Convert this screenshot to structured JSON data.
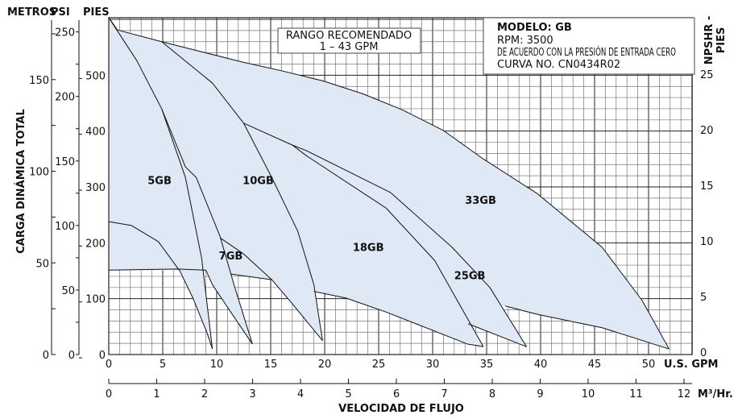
{
  "chart_data": {
    "type": "line",
    "title": "",
    "colors": {
      "fill": "#dfe8f5",
      "curve": "#111111",
      "grid_major": "#222222",
      "grid_minor": "#777777"
    },
    "grid": true,
    "x_axis": {
      "label": "U.S. GPM",
      "range": [
        0,
        54
      ],
      "ticks": [
        0,
        5,
        10,
        15,
        20,
        25,
        30,
        35,
        40,
        45,
        50
      ]
    },
    "x2_axis": {
      "label": "M³/Hr.",
      "title": "VELOCIDAD DE FLUJO",
      "range": [
        0,
        12.3
      ],
      "ticks": [
        0,
        1,
        2,
        3,
        4,
        5,
        6,
        7,
        8,
        9,
        10,
        11,
        12
      ]
    },
    "y_axis_title": "CARGA DINÁMICA TOTAL",
    "y_axes": [
      {
        "label": "METROS",
        "ticks": [
          0,
          50,
          100,
          150
        ],
        "minor_ticks": [
          25,
          75,
          125,
          175
        ]
      },
      {
        "label": "PSI",
        "ticks": [
          0,
          50,
          100,
          150,
          200,
          250
        ],
        "minor_ticks": [
          25,
          75,
          125,
          175,
          225
        ]
      },
      {
        "label": "PIES",
        "ticks": [
          0,
          100,
          200,
          300,
          400,
          500
        ],
        "range": [
          0,
          603
        ]
      }
    ],
    "y_right_axis": {
      "label_line1": "NPSHR -",
      "label_line2": "PIES",
      "ticks": [
        0,
        5,
        10,
        15,
        20,
        25
      ],
      "range": [
        0,
        25
      ]
    },
    "series_labels": [
      {
        "text": "5GB",
        "x": 3.6,
        "y": 305
      },
      {
        "text": "7GB",
        "x": 10.2,
        "y": 170
      },
      {
        "text": "10GB",
        "x": 12.4,
        "y": 305
      },
      {
        "text": "18GB",
        "x": 22.6,
        "y": 185
      },
      {
        "text": "25GB",
        "x": 32.0,
        "y": 135
      },
      {
        "text": "33GB",
        "x": 33.0,
        "y": 270
      }
    ],
    "regions": [
      {
        "name": "33GB",
        "points": [
          [
            0,
            603
          ],
          [
            0.8,
            581
          ],
          [
            4.9,
            560
          ],
          [
            8.6,
            542
          ],
          [
            12.3,
            524
          ],
          [
            16.0,
            508
          ],
          [
            19.8,
            490
          ],
          [
            23.5,
            467
          ],
          [
            27.2,
            438
          ],
          [
            31.0,
            401
          ],
          [
            34.7,
            350
          ],
          [
            39.7,
            288
          ],
          [
            45.7,
            192
          ],
          [
            49.4,
            97
          ],
          [
            51.9,
            10
          ],
          [
            45.7,
            48
          ],
          [
            39.7,
            72
          ],
          [
            36.7,
            87
          ],
          [
            22.0,
            101
          ],
          [
            15.1,
            134
          ],
          [
            9.0,
            151
          ],
          [
            0,
            151
          ]
        ]
      },
      {
        "name": "25GB",
        "points": [
          [
            17.0,
            375
          ],
          [
            18.3,
            365
          ],
          [
            26.1,
            290
          ],
          [
            31.8,
            192
          ],
          [
            35.3,
            120
          ],
          [
            38.7,
            14
          ],
          [
            33.4,
            54
          ],
          [
            29.0,
            65
          ],
          [
            22.0,
            101
          ],
          [
            17.0,
            200
          ]
        ]
      },
      {
        "name": "18GB",
        "points": [
          [
            12.5,
            414
          ],
          [
            17.0,
            375
          ],
          [
            18.3,
            356
          ],
          [
            25.7,
            262
          ],
          [
            30.2,
            168
          ],
          [
            34.7,
            14
          ],
          [
            33.2,
            19
          ],
          [
            25.7,
            76
          ],
          [
            22.0,
            101
          ],
          [
            19.8,
            111
          ],
          [
            15.1,
            134
          ],
          [
            11.3,
            144
          ]
        ]
      },
      {
        "name": "10GB",
        "points": [
          [
            0.8,
            581
          ],
          [
            4.9,
            560
          ],
          [
            9.6,
            486
          ],
          [
            12.5,
            414
          ],
          [
            15.1,
            317
          ],
          [
            17.5,
            221
          ],
          [
            19.0,
            125
          ],
          [
            19.8,
            25
          ],
          [
            17.0,
            91
          ],
          [
            15.1,
            134
          ],
          [
            11.3,
            144
          ],
          [
            9.0,
            151
          ],
          [
            0,
            151
          ]
        ]
      },
      {
        "name": "7GB",
        "points": [
          [
            0,
            603
          ],
          [
            4.9,
            440
          ],
          [
            7.1,
            336
          ],
          [
            8.1,
            317
          ],
          [
            10.3,
            212
          ],
          [
            11.6,
            125
          ],
          [
            13.3,
            19
          ],
          [
            11.3,
            76
          ],
          [
            9.6,
            125
          ],
          [
            9.0,
            151
          ],
          [
            0,
            151
          ]
        ]
      },
      {
        "name": "5GB",
        "points": [
          [
            0,
            603
          ],
          [
            2.6,
            526
          ],
          [
            4.9,
            440
          ],
          [
            7.1,
            317
          ],
          [
            8.6,
            173
          ],
          [
            9.6,
            10
          ],
          [
            9.1,
            39
          ],
          [
            7.8,
            101
          ],
          [
            6.6,
            149
          ],
          [
            4.6,
            202
          ],
          [
            2.1,
            231
          ],
          [
            0,
            238
          ]
        ]
      }
    ],
    "curves": [
      {
        "name": "33GB-head",
        "points": [
          [
            0,
            603
          ],
          [
            0.8,
            581
          ],
          [
            4.9,
            560
          ],
          [
            8.6,
            542
          ],
          [
            12.3,
            524
          ],
          [
            16.0,
            508
          ],
          [
            19.8,
            490
          ],
          [
            23.5,
            467
          ],
          [
            27.2,
            438
          ],
          [
            31.0,
            401
          ],
          [
            34.7,
            350
          ],
          [
            39.7,
            288
          ],
          [
            45.7,
            192
          ],
          [
            49.4,
            97
          ],
          [
            51.9,
            10
          ]
        ]
      },
      {
        "name": "5GB-head",
        "points": [
          [
            0,
            603
          ],
          [
            2.6,
            526
          ],
          [
            4.9,
            440
          ],
          [
            7.1,
            317
          ],
          [
            8.6,
            173
          ],
          [
            9.6,
            10
          ]
        ]
      },
      {
        "name": "7GB-head",
        "points": [
          [
            4.9,
            440
          ],
          [
            7.1,
            336
          ],
          [
            8.1,
            317
          ],
          [
            10.3,
            212
          ],
          [
            11.6,
            125
          ],
          [
            13.3,
            19
          ]
        ]
      },
      {
        "name": "10GB-head",
        "points": [
          [
            4.9,
            560
          ],
          [
            9.6,
            486
          ],
          [
            12.5,
            414
          ],
          [
            15.1,
            317
          ],
          [
            17.5,
            221
          ],
          [
            19.0,
            125
          ],
          [
            19.8,
            25
          ]
        ]
      },
      {
        "name": "18GB-head",
        "points": [
          [
            12.5,
            414
          ],
          [
            17.0,
            375
          ],
          [
            18.3,
            356
          ],
          [
            25.7,
            262
          ],
          [
            30.2,
            168
          ],
          [
            34.7,
            14
          ]
        ]
      },
      {
        "name": "25GB-head",
        "points": [
          [
            17.0,
            375
          ],
          [
            18.3,
            365
          ],
          [
            26.1,
            290
          ],
          [
            31.8,
            192
          ],
          [
            35.3,
            120
          ],
          [
            38.7,
            14
          ]
        ]
      },
      {
        "name": "5GB-lower",
        "points": [
          [
            0,
            238
          ],
          [
            2.1,
            231
          ],
          [
            4.6,
            202
          ],
          [
            6.6,
            149
          ],
          [
            7.8,
            101
          ],
          [
            9.1,
            39
          ],
          [
            9.6,
            10
          ]
        ]
      },
      {
        "name": "7GB-lower",
        "points": [
          [
            0,
            151
          ],
          [
            6.3,
            153
          ],
          [
            9.0,
            151
          ],
          [
            9.6,
            125
          ],
          [
            11.3,
            76
          ],
          [
            13.3,
            19
          ]
        ]
      },
      {
        "name": "10GB-inner",
        "points": [
          [
            10.3,
            209
          ],
          [
            12.5,
            180
          ],
          [
            15.1,
            134
          ],
          [
            17.0,
            91
          ],
          [
            19.8,
            25
          ]
        ]
      },
      {
        "name": "10GB-lower",
        "points": [
          [
            11.3,
            144
          ],
          [
            15.1,
            134
          ]
        ]
      },
      {
        "name": "18GB-lower",
        "points": [
          [
            19.0,
            113
          ],
          [
            22.0,
            101
          ],
          [
            25.7,
            76
          ],
          [
            33.2,
            19
          ],
          [
            34.7,
            14
          ]
        ]
      },
      {
        "name": "25GB-lower",
        "points": [
          [
            33.3,
            55
          ],
          [
            38.7,
            14
          ]
        ]
      },
      {
        "name": "33GB-lower",
        "points": [
          [
            36.7,
            87
          ],
          [
            39.7,
            72
          ],
          [
            45.7,
            48
          ],
          [
            51.9,
            10
          ]
        ]
      }
    ]
  },
  "range_box": {
    "line1": "RANGO RECOMENDADO",
    "line2": "1 – 43 GPM"
  },
  "model_box": {
    "model": "MODELO: GB",
    "rpm": "RPM: 3500",
    "note": "DE ACUERDO CON LA PRESIÓN DE ENTRADA CERO",
    "curve": "CURVA NO. CN0434R02"
  }
}
